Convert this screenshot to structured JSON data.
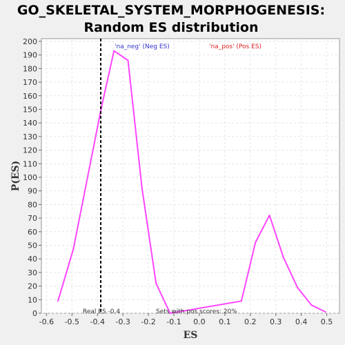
{
  "chart_data": {
    "type": "line",
    "title_line1": "GO_SKELETAL_SYSTEM_MORPHOGENESIS:",
    "title_line2": "Random ES distribution",
    "xlabel": "ES",
    "ylabel": "P(ES)",
    "xlim": [
      -0.62,
      0.55
    ],
    "ylim": [
      0,
      202
    ],
    "xticks": [
      -0.6,
      -0.5,
      -0.4,
      -0.3,
      -0.2,
      -0.1,
      0.0,
      0.1,
      0.2,
      0.3,
      0.4,
      0.5
    ],
    "xtick_labels": [
      "-0.6",
      "-0.5",
      "-0.4",
      "-0.3",
      "-0.2",
      "-0.1",
      "0.0",
      "0.1",
      "0.2",
      "0.3",
      "0.4",
      "0.5"
    ],
    "yticks": [
      0,
      10,
      20,
      30,
      40,
      50,
      60,
      70,
      80,
      90,
      100,
      110,
      120,
      130,
      140,
      150,
      160,
      170,
      180,
      190,
      200
    ],
    "grid": true,
    "series": [
      {
        "name": "'na_neg' (Neg ES)",
        "color": "#ff44ff",
        "x": [
          -0.555,
          -0.495,
          -0.44,
          -0.385,
          -0.335,
          -0.28,
          -0.225,
          -0.17,
          -0.115,
          0.165,
          0.22,
          0.275,
          0.33,
          0.385,
          0.44,
          0.495
        ],
        "y": [
          9,
          47,
          99,
          151,
          193,
          186,
          92,
          22,
          0,
          9,
          52,
          72,
          41,
          19,
          6,
          1
        ]
      }
    ],
    "legend": [
      {
        "label": "'na_neg' (Neg ES)",
        "color": "#3333cc"
      },
      {
        "label": "'na_pos' (Pos ES)",
        "color": "#dd2222"
      }
    ],
    "legend_placement": "top",
    "real_es": -0.387,
    "annotations": {
      "real_es_label": "Real ES -0.4",
      "pos_scores_label": "Sets with pos scores: 20%"
    }
  }
}
